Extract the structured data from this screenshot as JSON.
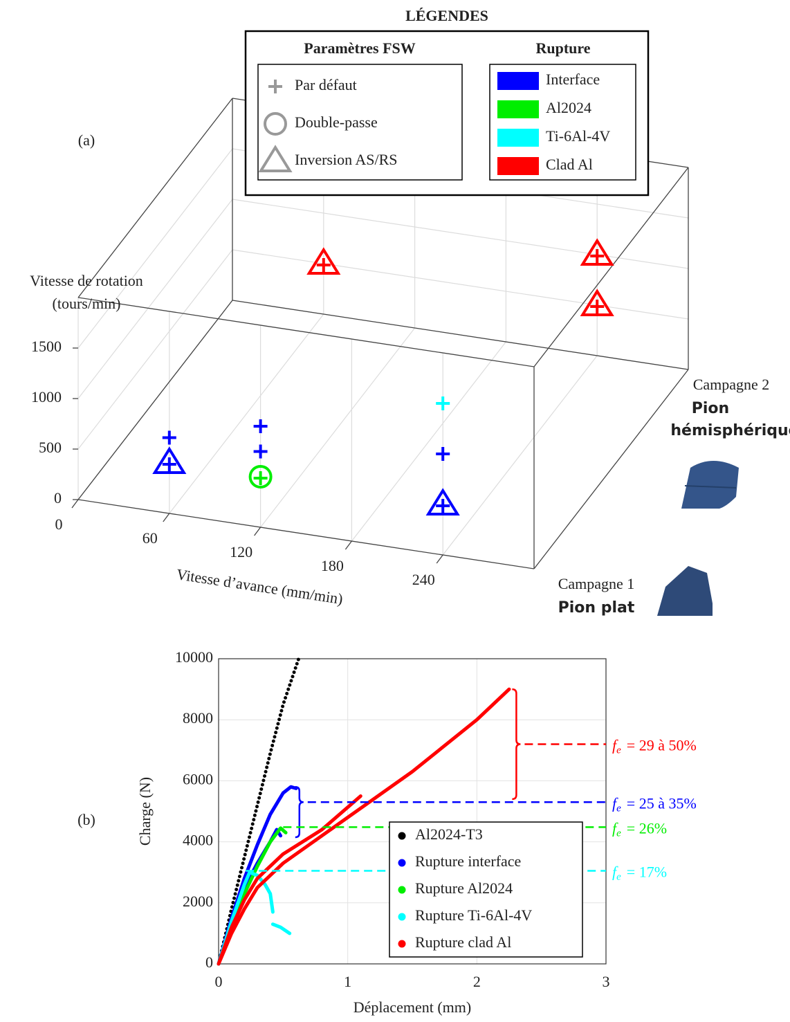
{
  "chart_data": [
    {
      "type": "scatter3d",
      "panel": "(a)",
      "xlabel": "Vitesse d’avance (mm/min)",
      "ylabel": [
        "Vitesse de rotation",
        "(tours/min)"
      ],
      "xlim": [
        0,
        300
      ],
      "xticks": [
        0,
        60,
        120,
        180,
        240
      ],
      "ylim": [
        0,
        2000
      ],
      "yticks": [
        0,
        500,
        1000,
        1500
      ],
      "grid": true,
      "z_categories": [
        {
          "name": "Campagne 1",
          "tool": [
            "Pion plat"
          ]
        },
        {
          "name": "Campagne 2",
          "tool": [
            "Pion",
            "hémisphérique"
          ]
        }
      ],
      "legend": {
        "title": "LÉGENDES",
        "markers": {
          "title": "Paramètres FSW",
          "items": [
            {
              "label": "Par défaut",
              "marker": "plus"
            },
            {
              "label": "Double-passe",
              "marker": "circle"
            },
            {
              "label": "Inversion AS/RS",
              "marker": "triangle"
            }
          ]
        },
        "colors": {
          "title": "Rupture",
          "items": [
            {
              "label": "Interface",
              "color": "#0000ff"
            },
            {
              "label": "Al2024",
              "color": "#00ee00"
            },
            {
              "label": "Ti-6Al-4V",
              "color": "#00ffff"
            },
            {
              "label": "Clad Al",
              "color": "#ff0000"
            }
          ]
        }
      },
      "points": [
        {
          "x": 60,
          "y": 750,
          "z": 0,
          "marker": "plus",
          "color": "#0000ff"
        },
        {
          "x": 60,
          "y": 500,
          "z": 0,
          "marker": "triangle",
          "color": "#0000ff"
        },
        {
          "x": 120,
          "y": 1000,
          "z": 0,
          "marker": "plus",
          "color": "#0000ff"
        },
        {
          "x": 120,
          "y": 750,
          "z": 0,
          "marker": "plus",
          "color": "#0000ff"
        },
        {
          "x": 120,
          "y": 500,
          "z": 0,
          "marker": "circle",
          "color": "#00ee00"
        },
        {
          "x": 240,
          "y": 1500,
          "z": 0,
          "marker": "plus",
          "color": "#00ffff"
        },
        {
          "x": 240,
          "y": 1000,
          "z": 0,
          "marker": "plus",
          "color": "#0000ff"
        },
        {
          "x": 240,
          "y": 500,
          "z": 0,
          "marker": "triangle",
          "color": "#0000ff"
        },
        {
          "x": 60,
          "y": 500,
          "z": 1,
          "marker": "triangle",
          "color": "#ff0000"
        },
        {
          "x": 240,
          "y": 1000,
          "z": 1,
          "marker": "triangle",
          "color": "#ff0000"
        },
        {
          "x": 240,
          "y": 500,
          "z": 1,
          "marker": "triangle",
          "color": "#ff0000"
        }
      ]
    },
    {
      "type": "line",
      "panel": "(b)",
      "xlabel": "Déplacement (mm)",
      "ylabel": "Charge (N)",
      "xlim": [
        0,
        3
      ],
      "xticks": [
        0,
        1,
        2,
        3
      ],
      "ylim": [
        0,
        10000
      ],
      "yticks": [
        0,
        2000,
        4000,
        6000,
        8000,
        10000
      ],
      "grid": true,
      "legend": "lower right",
      "series": [
        {
          "name": "Al2024-T3",
          "color": "#000000",
          "style": "dotted",
          "x": [
            0,
            0.1,
            0.2,
            0.3,
            0.4,
            0.5,
            0.62
          ],
          "values": [
            0,
            1800,
            3500,
            5200,
            6900,
            8500,
            10000
          ]
        },
        {
          "name": "Rupture interface",
          "color": "#0000ff",
          "style": "solid",
          "x": [
            0,
            0.1,
            0.2,
            0.3,
            0.4,
            0.5,
            0.56,
            0.6,
            null,
            0,
            0.1,
            0.2,
            0.3,
            0.4,
            0.45,
            0.48
          ],
          "values": [
            0,
            1500,
            2800,
            3900,
            4900,
            5600,
            5800,
            5750,
            null,
            0,
            1400,
            2500,
            3300,
            4000,
            4400,
            4200
          ]
        },
        {
          "name": "Rupture Al2024",
          "color": "#00ee00",
          "style": "solid",
          "x": [
            0,
            0.1,
            0.2,
            0.3,
            0.4,
            0.48,
            0.52
          ],
          "values": [
            0,
            1300,
            2300,
            3200,
            4000,
            4450,
            4300
          ]
        },
        {
          "name": "Rupture Ti-6Al-4V",
          "color": "#00ffff",
          "style": "solid",
          "x": [
            0,
            0.1,
            0.2,
            0.24,
            0.3,
            0.36,
            0.4,
            0.42,
            null,
            0.42,
            0.48,
            0.55
          ],
          "values": [
            0,
            1400,
            2600,
            3000,
            2900,
            2600,
            2300,
            1700,
            null,
            1300,
            1200,
            1000
          ]
        },
        {
          "name": "Rupture clad Al",
          "color": "#ff0000",
          "style": "solid",
          "x": [
            0,
            0.1,
            0.2,
            0.3,
            0.5,
            0.7,
            1.0,
            1.5,
            2.0,
            2.25,
            null,
            0,
            0.1,
            0.2,
            0.3,
            0.5,
            0.8,
            1.1
          ],
          "values": [
            0,
            1000,
            1800,
            2500,
            3300,
            3900,
            4800,
            6300,
            8000,
            9000,
            null,
            0,
            1200,
            2100,
            2800,
            3600,
            4400,
            5500
          ]
        }
      ],
      "annotations": [
        {
          "symbol": "f",
          "subscript": "e",
          "text": "= 29 à 50%",
          "color": "#ff0000",
          "y": 7200,
          "x": 2.37,
          "brace": [
            5400,
            9000
          ]
        },
        {
          "symbol": "f",
          "subscript": "e",
          "text": "= 25 à 35%",
          "color": "#0000ff",
          "y": 5300,
          "x": 0.69,
          "brace": [
            4150,
            5800
          ]
        },
        {
          "symbol": "f",
          "subscript": "e",
          "text": "= 26%",
          "color": "#00ee00",
          "y": 4480,
          "x": 0.5
        },
        {
          "symbol": "f",
          "subscript": "e",
          "text": "= 17%",
          "color": "#00ffff",
          "y": 3050,
          "x": 0.21
        }
      ]
    }
  ]
}
